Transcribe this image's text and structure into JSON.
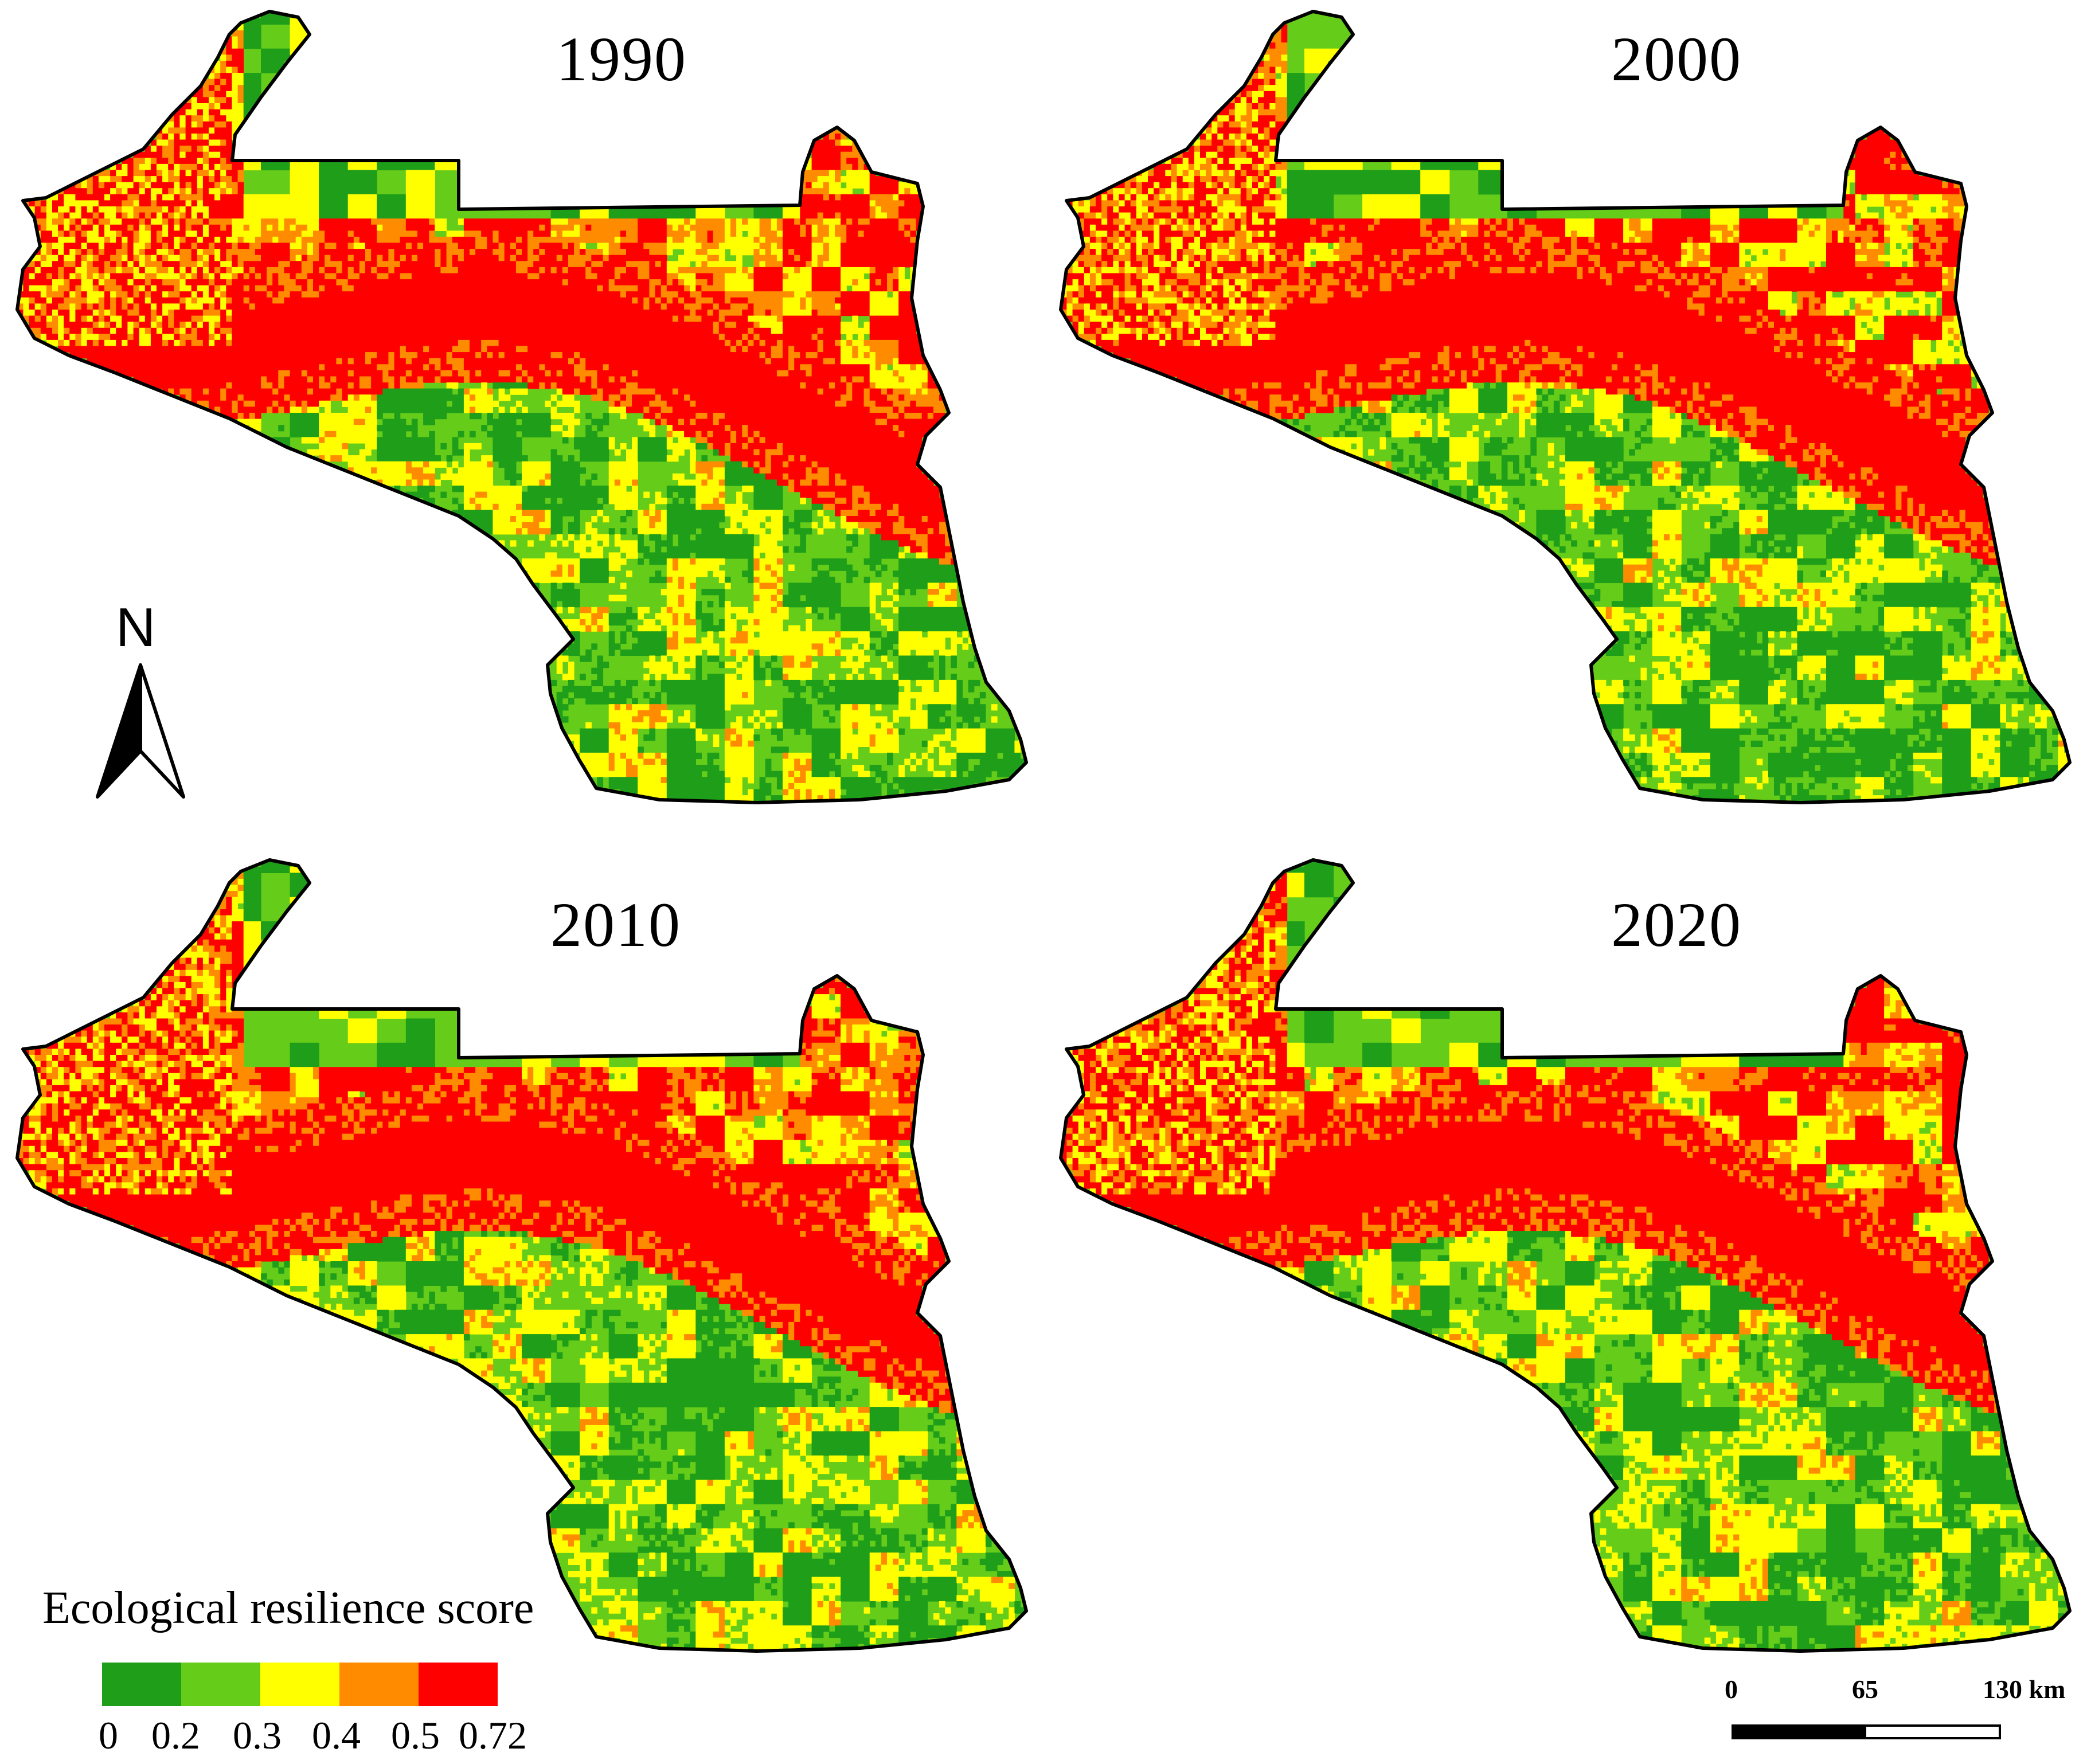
{
  "panels": [
    {
      "year": "1990"
    },
    {
      "year": "2000"
    },
    {
      "year": "2010"
    },
    {
      "year": "2020"
    }
  ],
  "north_arrow": {
    "letter": "N"
  },
  "legend": {
    "title": "Ecological resilience score",
    "classes": [
      {
        "from": 0,
        "to": 0.2,
        "color": "#1f9e1a"
      },
      {
        "from": 0.2,
        "to": 0.3,
        "color": "#66cc1a"
      },
      {
        "from": 0.3,
        "to": 0.4,
        "color": "#ffff00"
      },
      {
        "from": 0.4,
        "to": 0.5,
        "color": "#ff8c00"
      },
      {
        "from": 0.5,
        "to": 0.72,
        "color": "#ff0000"
      }
    ],
    "ticks": [
      "0",
      "0.2",
      "0.3",
      "0.4",
      "0.5",
      "0.72"
    ]
  },
  "scale_bar": {
    "labels": [
      "0",
      "65",
      "130 km"
    ]
  }
}
